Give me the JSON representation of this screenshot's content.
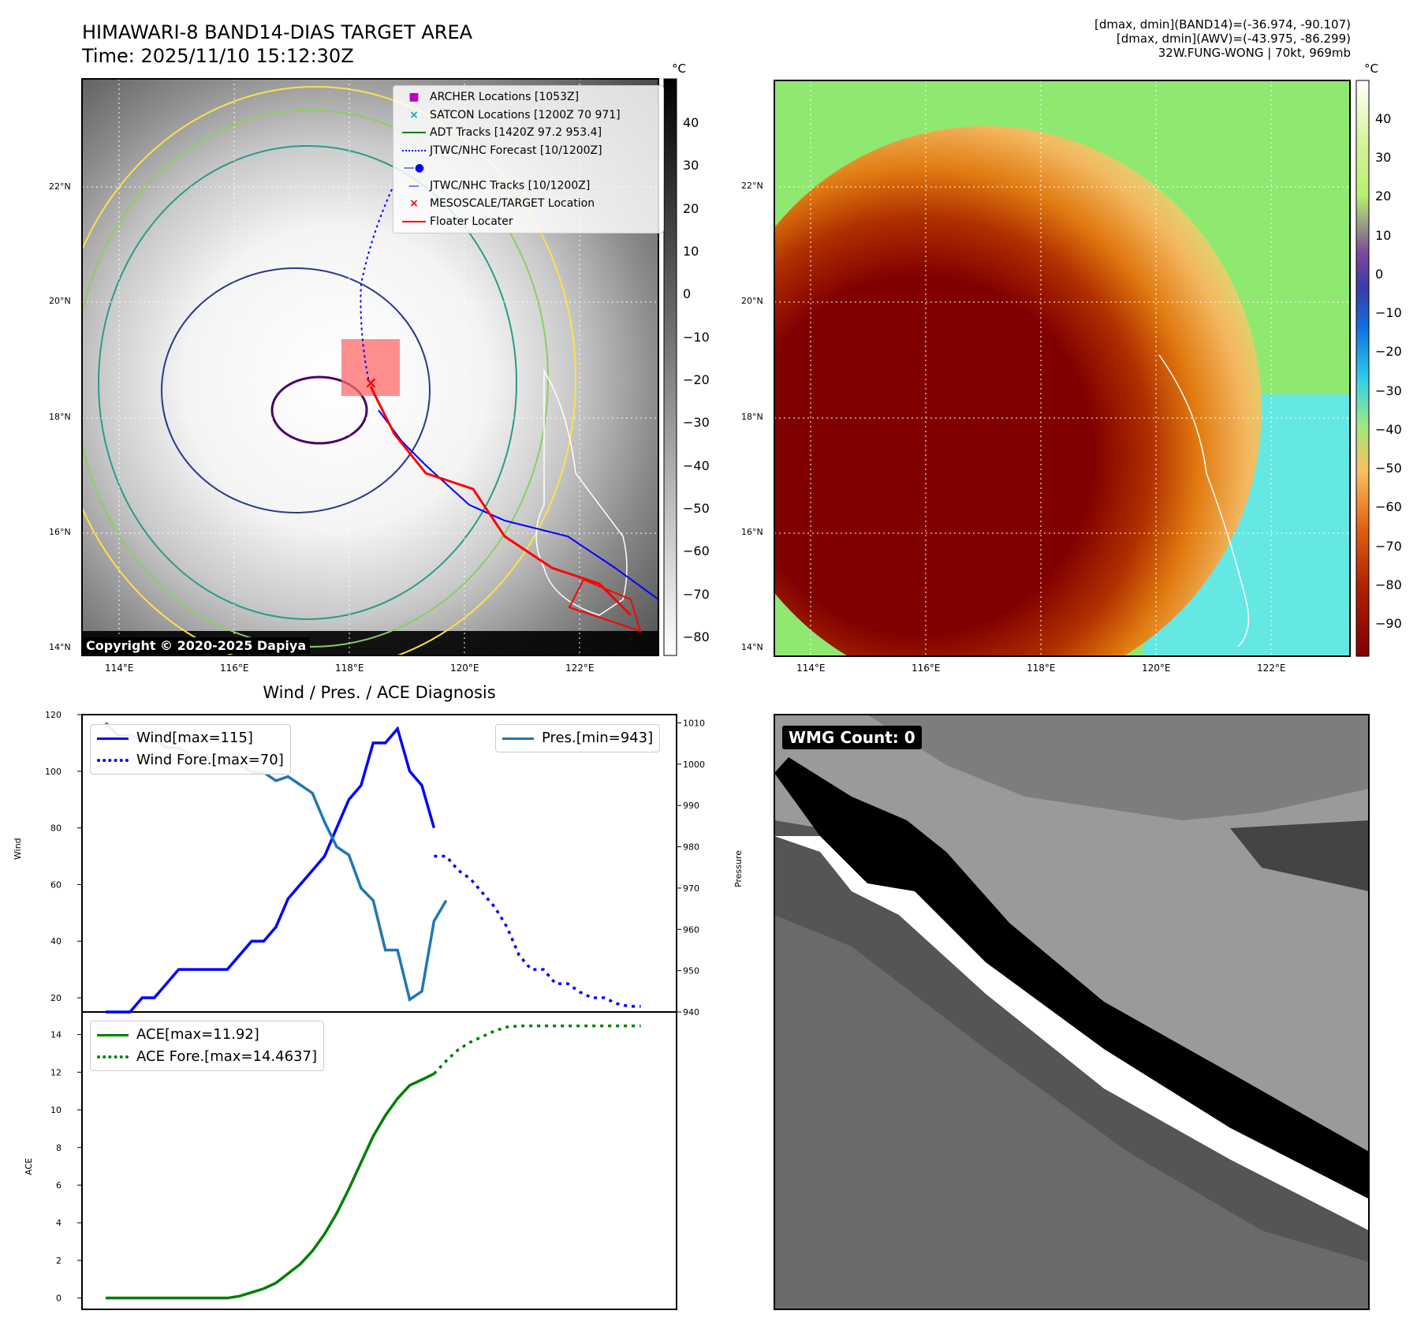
{
  "header": {
    "title_line1": "HIMAWARI-8 BAND14-DIAS TARGET AREA",
    "title_line2": "Time: 2025/11/10 15:12:30Z",
    "info_line1": "[dmax, dmin](BAND14)=(-36.974, -90.107)",
    "info_line2": "[dmax, dmin](AWV)=(-43.975, -86.299)",
    "info_line3": "32W.FUNG-WONG | 70kt, 969mb"
  },
  "maps": {
    "lat_ticks": [
      "22°N",
      "20°N",
      "18°N",
      "16°N",
      "14°N"
    ],
    "lon_ticks": [
      "114°E",
      "116°E",
      "118°E",
      "120°E",
      "122°E"
    ],
    "copyright": "Copyright © 2020-2025 Dapiya",
    "left_cbar_unit": "°C",
    "left_cbar_ticks": [
      "40",
      "30",
      "20",
      "10",
      "0",
      "−10",
      "−20",
      "−30",
      "−40",
      "−50",
      "−60",
      "−70",
      "−80"
    ],
    "right_cbar_unit": "°C",
    "right_cbar_ticks": [
      "40",
      "30",
      "20",
      "10",
      "0",
      "−10",
      "−20",
      "−30",
      "−40",
      "−50",
      "−60",
      "−70",
      "−80",
      "−90"
    ],
    "legend": [
      {
        "label": "ARCHER Locations [1053Z]",
        "color": "#c000c0",
        "marker": "square"
      },
      {
        "label": "SATCON Locations [1200Z 70 971]",
        "color": "#00b0b0",
        "marker": "x"
      },
      {
        "label": "ADT Tracks [1420Z 97.2 953.4]",
        "color": "#007f00",
        "marker": "line"
      },
      {
        "label": "JTWC/NHC Forecast [10/1200Z]",
        "color": "#0000ff",
        "marker": "dotted"
      },
      {
        "label": "JTWC/NHC Tracks [10/1200Z]",
        "color": "#0000ff",
        "marker": "line-dot"
      },
      {
        "label": "MESOSCALE/TARGET Location",
        "color": "#ff0000",
        "marker": "x"
      },
      {
        "label": "Floater Locater",
        "color": "#ff0000",
        "marker": "line"
      }
    ],
    "colors": {
      "storm_core": "#800000",
      "forecast": "#0000ff",
      "floater": "#ff0000"
    }
  },
  "wmg": {
    "label": "WMG Count: 0"
  },
  "chart_data": [
    {
      "type": "line",
      "title": "Wind / Pres. / ACE Diagnosis",
      "ylabel": "Wind",
      "ylabel_right": "Pressure",
      "ylim": [
        15,
        120
      ],
      "ylim_right": [
        940,
        1012
      ],
      "yticks": [
        20,
        40,
        60,
        80,
        100,
        120
      ],
      "yticks_right": [
        940,
        950,
        960,
        970,
        980,
        990,
        1000,
        1010
      ],
      "series": [
        {
          "name": "Wind[max=115]",
          "color": "#0000ff",
          "style": "solid",
          "axis": "left",
          "x": [
            0,
            1,
            2,
            3,
            4,
            5,
            6,
            7,
            8,
            9,
            10,
            11,
            12,
            13,
            14,
            15,
            16,
            17,
            18,
            19,
            20,
            21,
            22,
            23,
            24,
            25,
            26,
            27
          ],
          "values": [
            15,
            15,
            15,
            20,
            20,
            25,
            30,
            30,
            30,
            30,
            30,
            35,
            40,
            40,
            45,
            55,
            60,
            65,
            70,
            80,
            90,
            95,
            110,
            110,
            115,
            100,
            95,
            80
          ]
        },
        {
          "name": "Wind Fore.[max=70]",
          "color": "#0000ff",
          "style": "dotted",
          "axis": "left",
          "x": [
            27,
            28,
            29,
            30,
            31,
            32,
            33,
            34,
            35,
            36,
            37,
            38,
            39,
            40,
            41,
            42,
            43,
            44
          ],
          "values": [
            70,
            70,
            65,
            62,
            57,
            52,
            45,
            35,
            30,
            30,
            25,
            25,
            22,
            20,
            20,
            18,
            17,
            17
          ]
        },
        {
          "name": "Pres.[min=943]",
          "color": "#1f77b4",
          "style": "solid",
          "axis": "right",
          "x": [
            0,
            1,
            2,
            3,
            4,
            5,
            6,
            7,
            8,
            9,
            10,
            11,
            12,
            13,
            14,
            15,
            16,
            17,
            18,
            19,
            20,
            21,
            22,
            23,
            24,
            25,
            26,
            27,
            28
          ],
          "values": [
            1010,
            1007,
            1007,
            1006,
            1006,
            1004,
            1004,
            1002,
            1002,
            1001,
            1000,
            1000,
            998,
            998,
            996,
            997,
            995,
            993,
            986,
            980,
            978,
            970,
            967,
            955,
            955,
            943,
            945,
            962,
            967
          ]
        }
      ],
      "legend_left": [
        "Wind[max=115]",
        "Wind Fore.[max=70]"
      ],
      "legend_right": [
        "Pres.[min=943]"
      ]
    },
    {
      "type": "line",
      "ylabel": "ACE",
      "ylim": [
        -0.6,
        15.2
      ],
      "yticks": [
        0,
        2,
        4,
        6,
        8,
        10,
        12,
        14
      ],
      "series": [
        {
          "name": "ACE[max=11.92]",
          "color": "#007f00",
          "style": "solid",
          "x": [
            0,
            2,
            4,
            6,
            8,
            10,
            11,
            12,
            13,
            14,
            15,
            16,
            17,
            18,
            19,
            20,
            21,
            22,
            23,
            24,
            25,
            26,
            27
          ],
          "values": [
            0,
            0,
            0,
            0,
            0,
            0,
            0.1,
            0.3,
            0.5,
            0.8,
            1.3,
            1.8,
            2.5,
            3.4,
            4.5,
            5.8,
            7.2,
            8.6,
            9.7,
            10.6,
            11.3,
            11.6,
            11.92
          ]
        },
        {
          "name": "ACE Fore.[max=14.4637]",
          "color": "#007f00",
          "style": "dotted",
          "x": [
            27,
            28,
            29,
            30,
            31,
            32,
            33,
            34,
            35,
            36,
            37,
            38,
            39,
            40,
            41,
            42,
            43,
            44
          ],
          "values": [
            11.92,
            12.6,
            13.2,
            13.6,
            13.9,
            14.2,
            14.4,
            14.46,
            14.46,
            14.46,
            14.46,
            14.46,
            14.46,
            14.46,
            14.46,
            14.46,
            14.46,
            14.46
          ]
        }
      ],
      "legend": [
        "ACE[max=11.92]",
        "ACE Fore.[max=14.4637]"
      ]
    }
  ]
}
